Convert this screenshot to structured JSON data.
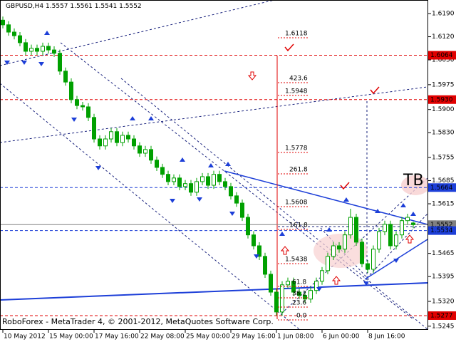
{
  "chart_data": {
    "type": "candlestick",
    "symbol": "GBPUSD,H4",
    "footer": "RoboForex - MetaTrader 4, © 2001-2012, MetaQuotes Software Corp.",
    "badge": "TB",
    "x": [
      "10 May 2012",
      null,
      null,
      null,
      null,
      null,
      null,
      null,
      "15 May 00:00",
      null,
      null,
      null,
      null,
      null,
      null,
      null,
      "17 May 16:00",
      null,
      null,
      null,
      null,
      null,
      null,
      null,
      "22 May 08:00",
      null,
      null,
      null,
      null,
      null,
      null,
      null,
      "25 May 00:00",
      null,
      null,
      null,
      null,
      null,
      null,
      null,
      "29 May 16:00",
      null,
      null,
      null,
      null,
      null,
      null,
      null,
      "1 Jun 08:00",
      null,
      null,
      null,
      null,
      null,
      null,
      null,
      "6 Jun 00:00",
      null,
      null,
      null,
      null,
      null,
      null,
      null,
      "8 Jun 16:00",
      null,
      null,
      null,
      null,
      null,
      null,
      null,
      null
    ],
    "open": [
      1.617,
      1.6156,
      1.6134,
      1.6123,
      1.6102,
      1.6076,
      1.6085,
      1.6076,
      1.6091,
      1.608,
      1.607,
      1.6016,
      1.5983,
      1.593,
      1.5912,
      1.5908,
      1.5876,
      1.5811,
      1.579,
      1.5811,
      1.5833,
      1.58,
      1.5822,
      1.5811,
      1.579,
      1.5768,
      1.5779,
      1.5747,
      1.5725,
      1.5704,
      1.5682,
      1.5693,
      1.5667,
      1.5676,
      1.565,
      1.5682,
      1.5697,
      1.5671,
      1.5704,
      1.5682,
      1.5667,
      1.5639,
      1.5617,
      1.5574,
      1.5521,
      1.5488,
      1.5456,
      1.5402,
      1.5348,
      1.5288,
      1.537,
      1.5381,
      1.5348,
      1.5338,
      1.5327,
      1.5353,
      1.5381,
      1.5413,
      1.5456,
      1.5488,
      1.5478,
      1.5521,
      1.5574,
      1.5499,
      1.5434,
      1.5417,
      1.5478,
      1.5531,
      1.5553,
      1.5488,
      1.5521,
      1.5564,
      1.5557
    ],
    "high": [
      1.6181,
      1.6167,
      1.6145,
      1.6134,
      1.6113,
      1.6096,
      1.6096,
      1.6102,
      1.6102,
      1.6091,
      1.6081,
      1.6027,
      1.5994,
      1.5941,
      1.5923,
      1.5919,
      1.5887,
      1.5822,
      1.5822,
      1.5844,
      1.5844,
      1.5833,
      1.5833,
      1.5822,
      1.5801,
      1.579,
      1.579,
      1.5758,
      1.5736,
      1.5715,
      1.5704,
      1.5704,
      1.5687,
      1.5687,
      1.5693,
      1.5708,
      1.5708,
      1.5715,
      1.5715,
      1.5693,
      1.5678,
      1.565,
      1.5628,
      1.5585,
      1.5532,
      1.5499,
      1.5467,
      1.5413,
      1.5359,
      1.5381,
      1.5392,
      1.5392,
      1.5359,
      1.5349,
      1.5364,
      1.5392,
      1.5424,
      1.5467,
      1.5499,
      1.5499,
      1.5532,
      1.56,
      1.5585,
      1.551,
      1.5445,
      1.5489,
      1.5542,
      1.5564,
      1.5564,
      1.5532,
      1.5575,
      1.5585,
      1.5561
    ],
    "low": [
      1.6145,
      1.6123,
      1.6112,
      1.6091,
      1.6065,
      1.6065,
      1.6065,
      1.6065,
      1.6069,
      1.6059,
      1.6005,
      1.5972,
      1.5919,
      1.5901,
      1.5897,
      1.5865,
      1.58,
      1.5779,
      1.5779,
      1.58,
      1.5789,
      1.5789,
      1.58,
      1.5779,
      1.5757,
      1.5757,
      1.5736,
      1.5714,
      1.5693,
      1.5671,
      1.5671,
      1.5656,
      1.5656,
      1.5639,
      1.5639,
      1.5671,
      1.566,
      1.566,
      1.5671,
      1.5656,
      1.5628,
      1.5606,
      1.5563,
      1.551,
      1.5477,
      1.5445,
      1.5391,
      1.5337,
      1.5277,
      1.5277,
      1.5359,
      1.5337,
      1.5327,
      1.5316,
      1.5316,
      1.5342,
      1.537,
      1.5402,
      1.5445,
      1.5467,
      1.5467,
      1.551,
      1.5488,
      1.5423,
      1.5406,
      1.5406,
      1.5467,
      1.552,
      1.5477,
      1.5477,
      1.551,
      1.5553,
      1.5541
    ],
    "close": [
      1.6156,
      1.6134,
      1.6123,
      1.6102,
      1.6076,
      1.6085,
      1.6076,
      1.6091,
      1.608,
      1.607,
      1.6016,
      1.5983,
      1.593,
      1.5912,
      1.5908,
      1.5876,
      1.5811,
      1.579,
      1.5811,
      1.5833,
      1.58,
      1.5822,
      1.5811,
      1.579,
      1.5768,
      1.5779,
      1.5747,
      1.5725,
      1.5704,
      1.5682,
      1.5693,
      1.5667,
      1.5676,
      1.565,
      1.5682,
      1.5697,
      1.5671,
      1.5704,
      1.5682,
      1.5667,
      1.5639,
      1.5617,
      1.5574,
      1.5521,
      1.5488,
      1.5456,
      1.5402,
      1.5348,
      1.5288,
      1.537,
      1.5381,
      1.5348,
      1.5338,
      1.5327,
      1.5353,
      1.5381,
      1.5413,
      1.5456,
      1.5488,
      1.5478,
      1.5521,
      1.5574,
      1.5499,
      1.5434,
      1.5417,
      1.5478,
      1.5531,
      1.5553,
      1.5488,
      1.5521,
      1.5564,
      1.5574,
      1.5552
    ],
    "color": "#00a000",
    "ylim": [
      1.5236,
      1.6231
    ],
    "yticks": [
      {
        "value": 1.619,
        "label": "1.6190"
      },
      {
        "value": 1.612,
        "label": "1.6120"
      },
      {
        "value": 1.605,
        "label": "1.6050"
      },
      1.5975,
      {
        "value": 1.59,
        "label": "1.5900"
      },
      {
        "value": 1.583,
        "label": "1.5830"
      },
      1.5755,
      1.5685,
      1.5615,
      1.5465,
      1.5395,
      {
        "value": 1.532,
        "label": "1.5320"
      },
      1.5245
    ],
    "levels": [
      {
        "value": 1.6064,
        "color": "#e00000"
      },
      {
        "value": 1.593,
        "label": "1.5930",
        "color": "#e00000"
      },
      {
        "value": 1.5664,
        "color": "#1d3fd8"
      },
      {
        "value": 1.5552,
        "color": "#808080"
      },
      {
        "value": 1.5534,
        "color": "#1d3fd8"
      },
      {
        "value": 1.5277,
        "color": "#e00000"
      }
    ],
    "annotations": [
      "1.6118",
      "423.6",
      "1.5948",
      "1.5778",
      "261.8",
      "1.5608",
      "161.8",
      "1.5438",
      "61.8",
      "38.2",
      "23.6",
      "0.0"
    ]
  }
}
